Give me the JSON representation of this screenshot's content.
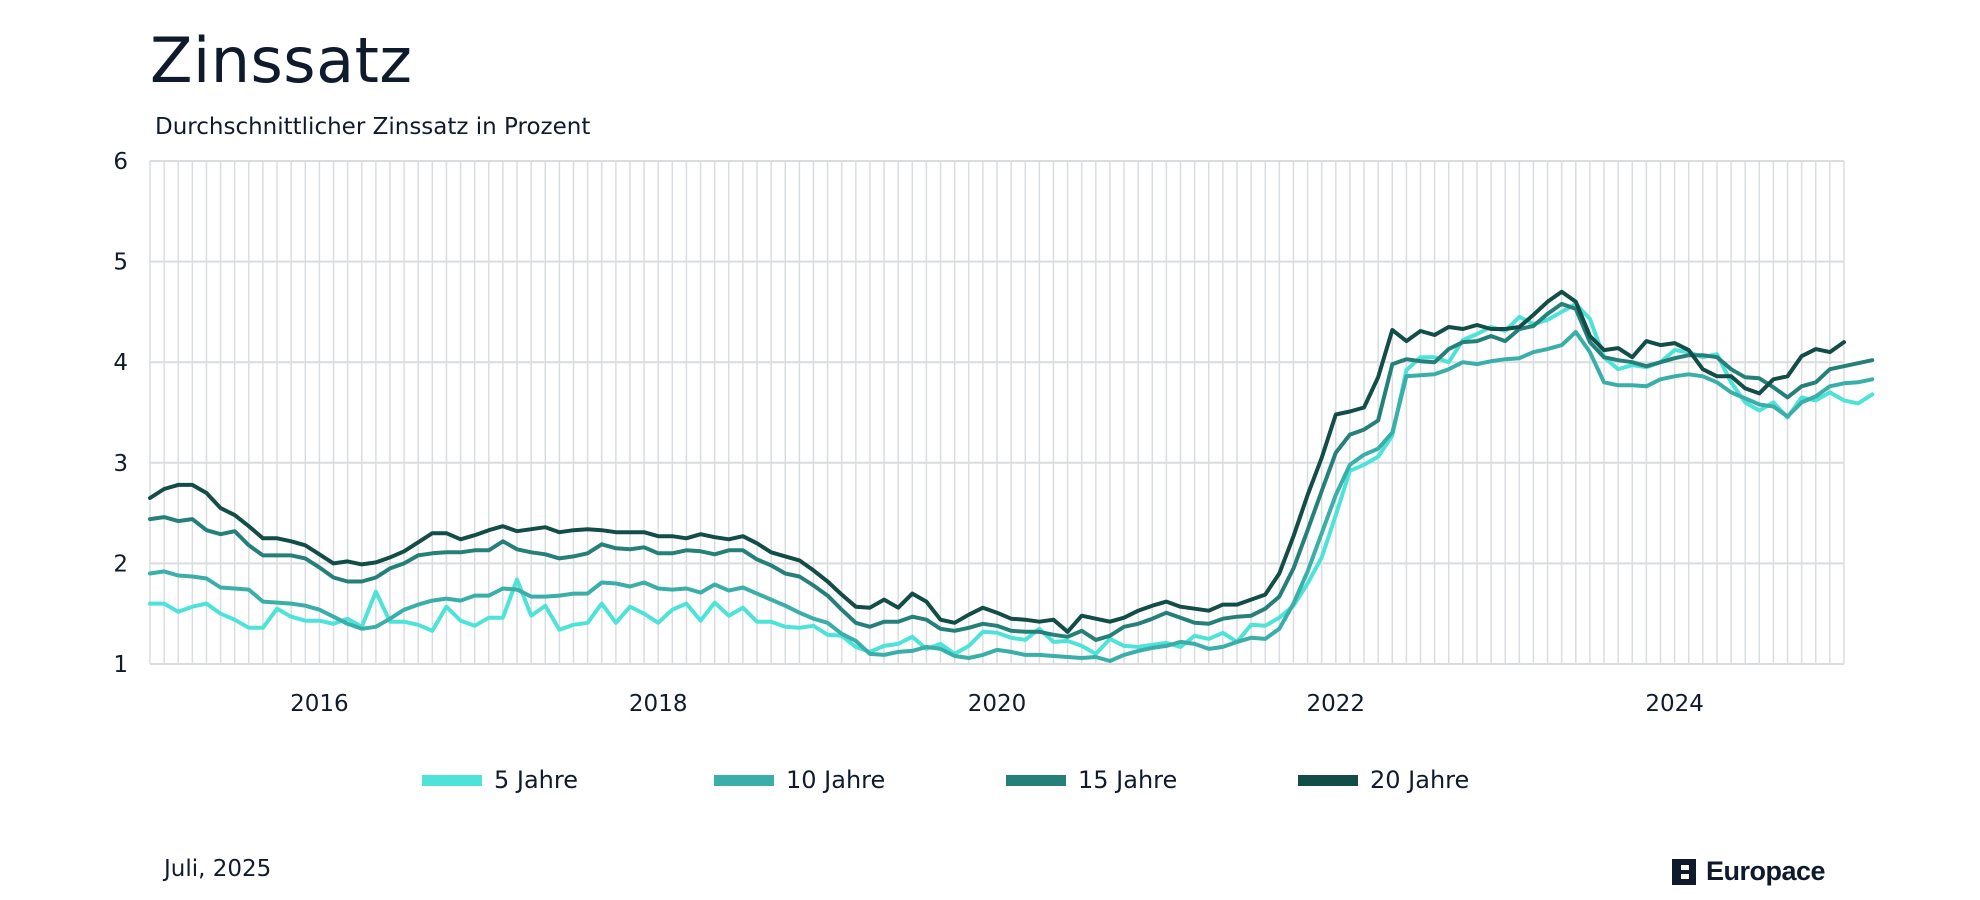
{
  "header": {
    "title": "Zinssatz",
    "subtitle": "Durchschnittlicher Zinssatz in Prozent"
  },
  "footer": {
    "date": "Juli, 2025",
    "brand": "Europace"
  },
  "colors": {
    "five": "#4de3d8",
    "ten": "#3aaea8",
    "fifteen": "#25807a",
    "twenty": "#124d48",
    "grid": "#dadde0",
    "text": "#0f1b2d"
  },
  "chart_data": {
    "type": "line",
    "title": "Zinssatz",
    "subtitle": "Durchschnittlicher Zinssatz in Prozent",
    "xlabel": "",
    "ylabel": "",
    "x_start": "2015-01",
    "x_interval": "month",
    "xlim": [
      "2015-01",
      "2025-01"
    ],
    "ylim": [
      1,
      6
    ],
    "y_ticks": [
      1,
      2,
      3,
      4,
      5,
      6
    ],
    "x_ticks": [
      {
        "label": "2016",
        "x": "2016-01"
      },
      {
        "label": "2018",
        "x": "2018-01"
      },
      {
        "label": "2020",
        "x": "2020-01"
      },
      {
        "label": "2022",
        "x": "2022-01"
      },
      {
        "label": "2024",
        "x": "2024-01"
      }
    ],
    "grid": "vertical monthly lines and horizontal lines at y ticks",
    "legend": "bottom",
    "series": [
      {
        "name": "5 Jahre",
        "color": "#4de3d8",
        "values": [
          1.6,
          1.6,
          1.52,
          1.57,
          1.6,
          1.5,
          1.44,
          1.36,
          1.36,
          1.55,
          1.47,
          1.43,
          1.43,
          1.4,
          1.45,
          1.37,
          1.72,
          1.42,
          1.42,
          1.39,
          1.33,
          1.57,
          1.43,
          1.38,
          1.46,
          1.46,
          1.84,
          1.48,
          1.58,
          1.34,
          1.39,
          1.41,
          1.6,
          1.41,
          1.57,
          1.5,
          1.41,
          1.54,
          1.6,
          1.43,
          1.61,
          1.48,
          1.56,
          1.42,
          1.42,
          1.37,
          1.36,
          1.38,
          1.29,
          1.28,
          1.17,
          1.12,
          1.18,
          1.2,
          1.27,
          1.15,
          1.2,
          1.1,
          1.18,
          1.32,
          1.31,
          1.26,
          1.24,
          1.35,
          1.22,
          1.23,
          1.18,
          1.1,
          1.25,
          1.18,
          1.17,
          1.19,
          1.21,
          1.17,
          1.28,
          1.25,
          1.31,
          1.22,
          1.39,
          1.38,
          1.46,
          1.58,
          1.8,
          2.06,
          2.48,
          2.92,
          2.98,
          3.06,
          3.27,
          3.92,
          4.05,
          4.05,
          4.0,
          4.22,
          4.28,
          4.35,
          4.31,
          4.45,
          4.38,
          4.42,
          4.5,
          4.58,
          4.43,
          4.05,
          3.93,
          3.97,
          3.95,
          4.0,
          4.12,
          4.1,
          4.05,
          4.08,
          3.8,
          3.6,
          3.52,
          3.6,
          3.45,
          3.65,
          3.62,
          3.7,
          3.62,
          3.59,
          3.68
        ]
      },
      {
        "name": "10 Jahre",
        "color": "#3aaea8",
        "values": [
          1.9,
          1.92,
          1.88,
          1.87,
          1.85,
          1.76,
          1.75,
          1.74,
          1.62,
          1.61,
          1.6,
          1.58,
          1.54,
          1.47,
          1.4,
          1.35,
          1.37,
          1.45,
          1.54,
          1.59,
          1.63,
          1.65,
          1.63,
          1.68,
          1.68,
          1.75,
          1.74,
          1.67,
          1.67,
          1.68,
          1.7,
          1.7,
          1.81,
          1.8,
          1.77,
          1.81,
          1.75,
          1.74,
          1.75,
          1.71,
          1.79,
          1.73,
          1.76,
          1.7,
          1.64,
          1.58,
          1.51,
          1.45,
          1.41,
          1.3,
          1.23,
          1.1,
          1.09,
          1.12,
          1.13,
          1.17,
          1.15,
          1.08,
          1.06,
          1.09,
          1.14,
          1.12,
          1.09,
          1.09,
          1.08,
          1.07,
          1.06,
          1.07,
          1.03,
          1.09,
          1.13,
          1.16,
          1.18,
          1.22,
          1.2,
          1.15,
          1.17,
          1.22,
          1.26,
          1.25,
          1.35,
          1.6,
          1.92,
          2.3,
          2.68,
          2.98,
          3.08,
          3.14,
          3.3,
          3.86,
          3.87,
          3.88,
          3.93,
          4.0,
          3.98,
          4.01,
          4.03,
          4.04,
          4.1,
          4.13,
          4.17,
          4.3,
          4.1,
          3.8,
          3.77,
          3.77,
          3.76,
          3.83,
          3.86,
          3.88,
          3.86,
          3.8,
          3.7,
          3.64,
          3.58,
          3.56,
          3.46,
          3.6,
          3.66,
          3.76,
          3.79,
          3.8,
          3.83
        ]
      },
      {
        "name": "15 Jahre",
        "color": "#25807a",
        "values": [
          2.44,
          2.46,
          2.42,
          2.44,
          2.33,
          2.29,
          2.32,
          2.18,
          2.08,
          2.08,
          2.08,
          2.05,
          1.96,
          1.86,
          1.82,
          1.82,
          1.86,
          1.95,
          2.0,
          2.08,
          2.1,
          2.11,
          2.11,
          2.13,
          2.13,
          2.22,
          2.14,
          2.11,
          2.09,
          2.05,
          2.07,
          2.1,
          2.19,
          2.15,
          2.14,
          2.16,
          2.1,
          2.1,
          2.13,
          2.12,
          2.09,
          2.13,
          2.13,
          2.04,
          1.98,
          1.9,
          1.87,
          1.78,
          1.68,
          1.54,
          1.41,
          1.37,
          1.42,
          1.42,
          1.47,
          1.44,
          1.35,
          1.33,
          1.36,
          1.4,
          1.38,
          1.33,
          1.32,
          1.32,
          1.29,
          1.27,
          1.33,
          1.24,
          1.28,
          1.37,
          1.4,
          1.45,
          1.51,
          1.46,
          1.41,
          1.4,
          1.45,
          1.47,
          1.48,
          1.55,
          1.67,
          1.95,
          2.33,
          2.72,
          3.1,
          3.28,
          3.33,
          3.42,
          3.98,
          4.03,
          4.01,
          4.0,
          4.13,
          4.2,
          4.21,
          4.26,
          4.21,
          4.33,
          4.36,
          4.48,
          4.58,
          4.53,
          4.2,
          4.05,
          4.02,
          4.0,
          3.96,
          4.0,
          4.04,
          4.07,
          4.07,
          4.05,
          3.93,
          3.85,
          3.84,
          3.75,
          3.65,
          3.76,
          3.8,
          3.93,
          3.96,
          3.99,
          4.02
        ]
      },
      {
        "name": "20 Jahre",
        "color": "#124d48",
        "values": [
          2.65,
          2.74,
          2.78,
          2.78,
          2.7,
          2.55,
          2.48,
          2.37,
          2.25,
          2.25,
          2.22,
          2.18,
          2.09,
          2.0,
          2.02,
          1.99,
          2.01,
          2.06,
          2.12,
          2.21,
          2.3,
          2.3,
          2.24,
          2.28,
          2.33,
          2.37,
          2.32,
          2.34,
          2.36,
          2.31,
          2.33,
          2.34,
          2.33,
          2.31,
          2.31,
          2.31,
          2.27,
          2.27,
          2.25,
          2.29,
          2.26,
          2.24,
          2.27,
          2.2,
          2.11,
          2.07,
          2.03,
          1.93,
          1.82,
          1.69,
          1.57,
          1.56,
          1.64,
          1.56,
          1.7,
          1.62,
          1.44,
          1.41,
          1.49,
          1.56,
          1.51,
          1.45,
          1.44,
          1.42,
          1.44,
          1.32,
          1.48,
          1.45,
          1.42,
          1.46,
          1.53,
          1.58,
          1.62,
          1.57,
          1.55,
          1.53,
          1.59,
          1.59,
          1.64,
          1.69,
          1.9,
          2.27,
          2.68,
          3.05,
          3.48,
          3.51,
          3.55,
          3.85,
          4.32,
          4.21,
          4.31,
          4.27,
          4.35,
          4.33,
          4.37,
          4.33,
          4.33,
          4.35,
          4.47,
          4.6,
          4.7,
          4.6,
          4.26,
          4.12,
          4.14,
          4.05,
          4.21,
          4.17,
          4.19,
          4.12,
          3.93,
          3.86,
          3.86,
          3.74,
          3.69,
          3.83,
          3.86,
          4.06,
          4.13,
          4.1,
          4.2
        ]
      }
    ]
  }
}
